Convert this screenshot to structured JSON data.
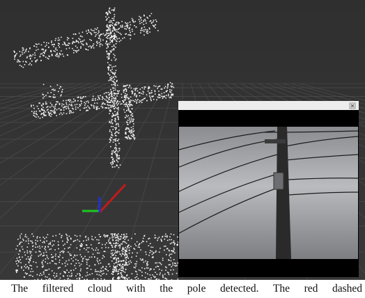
{
  "caption": "The filtered cloud with the pole detected. The red dashed"
}
